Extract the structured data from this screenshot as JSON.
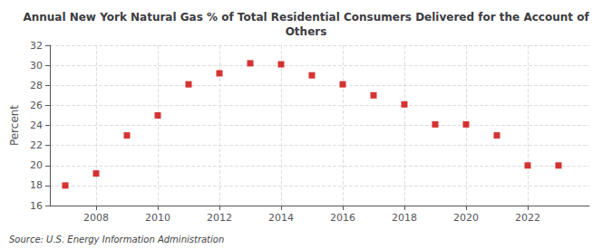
{
  "chart_data": {
    "type": "scatter",
    "title": "Annual New York Natural Gas % of Total Residential Consumers Delivered for the Account of\nOthers",
    "ylabel": "Percent",
    "annotation": "Source: U.S. Energy Information Administration",
    "color": "#cc0000",
    "marker": "square",
    "grid": true,
    "x": [
      2007,
      2008,
      2009,
      2010,
      2011,
      2012,
      2013,
      2014,
      2015,
      2016,
      2017,
      2018,
      2019,
      2020,
      2021,
      2022,
      2023
    ],
    "values": [
      18.0,
      19.2,
      23.0,
      25.0,
      28.1,
      29.2,
      30.2,
      30.1,
      29.0,
      28.1,
      27.0,
      26.1,
      24.1,
      24.1,
      23.0,
      20.0,
      20.0
    ],
    "xlim": [
      2006.5,
      2024.0
    ],
    "xticks": [
      2008,
      2010,
      2012,
      2014,
      2016,
      2018,
      2020,
      2022
    ],
    "ylim": [
      16,
      32
    ],
    "yticks": [
      16,
      18,
      20,
      22,
      24,
      26,
      28,
      30,
      32
    ]
  }
}
